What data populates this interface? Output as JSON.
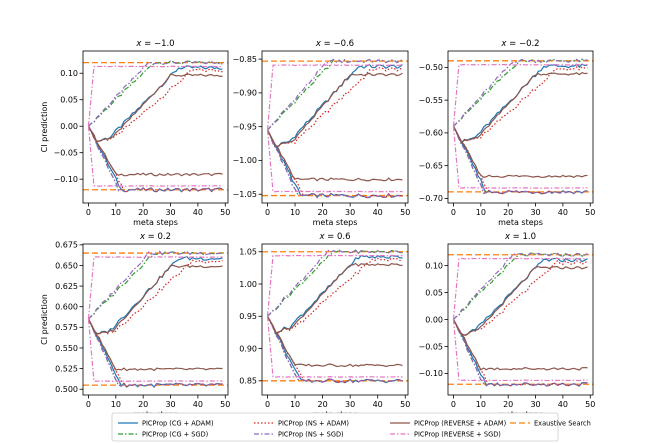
{
  "figure": {
    "ylabel": "CI prediction",
    "xlabel": "meta steps"
  },
  "chart_data": [
    {
      "type": "line",
      "title": "x = −1.0",
      "title_var": "x",
      "title_value": "−1.0",
      "xlabel": "meta steps",
      "ylabel": "CI prediction",
      "xlim": [
        -2,
        51
      ],
      "ylim": [
        -0.145,
        0.142
      ],
      "xticks": [
        "0",
        "10",
        "20",
        "30",
        "40",
        "50"
      ],
      "yticks": [
        0.1,
        0.05,
        0.0,
        -0.05,
        -0.1
      ],
      "ytick_labels": [
        "0.10",
        "0.05",
        "0.00",
        "−0.05",
        "−0.10"
      ],
      "start": 0.0,
      "upper": 0.12,
      "lower": -0.12,
      "grid": false
    },
    {
      "type": "line",
      "title": "x = −0.6",
      "title_var": "x",
      "title_value": "−0.6",
      "xlabel": "meta steps",
      "ylabel": "",
      "xlim": [
        -2,
        51
      ],
      "ylim": [
        -1.063,
        -0.838
      ],
      "xticks": [
        "0",
        "10",
        "20",
        "30",
        "40",
        "50"
      ],
      "yticks": [
        -0.85,
        -0.9,
        -0.95,
        -1.0,
        -1.05
      ],
      "ytick_labels": [
        "−0.85",
        "−0.90",
        "−0.95",
        "−1.00",
        "−1.05"
      ],
      "start": -0.955,
      "upper": -0.853,
      "lower": -1.052,
      "grid": false
    },
    {
      "type": "line",
      "title": "x = −0.2",
      "title_var": "x",
      "title_value": "−0.2",
      "xlabel": "meta steps",
      "ylabel": "",
      "xlim": [
        -2,
        51
      ],
      "ylim": [
        -0.707,
        -0.475
      ],
      "xticks": [
        "0",
        "10",
        "20",
        "30",
        "40",
        "50"
      ],
      "yticks": [
        -0.5,
        -0.55,
        -0.6,
        -0.65,
        -0.7
      ],
      "ytick_labels": [
        "−0.50",
        "−0.55",
        "−0.60",
        "−0.65",
        "−0.70"
      ],
      "start": -0.59,
      "upper": -0.49,
      "lower": -0.69,
      "grid": false
    },
    {
      "type": "line",
      "title": "x = 0.2",
      "title_var": "x",
      "title_value": "0.2",
      "xlabel": "meta steps",
      "ylabel": "CI prediction",
      "xlim": [
        -2,
        51
      ],
      "ylim": [
        0.493,
        0.676
      ],
      "xticks": [
        "0",
        "10",
        "20",
        "30",
        "40",
        "50"
      ],
      "yticks": [
        0.675,
        0.65,
        0.625,
        0.6,
        0.575,
        0.55,
        0.525,
        0.5
      ],
      "ytick_labels": [
        "0.675",
        "0.650",
        "0.625",
        "0.600",
        "0.575",
        "0.550",
        "0.525",
        "0.500"
      ],
      "start": 0.585,
      "upper": 0.665,
      "lower": 0.505,
      "grid": false
    },
    {
      "type": "line",
      "title": "x = 0.6",
      "title_var": "x",
      "title_value": "0.6",
      "xlabel": "meta steps",
      "ylabel": "",
      "xlim": [
        -2,
        51
      ],
      "ylim": [
        0.828,
        1.062
      ],
      "xticks": [
        "0",
        "10",
        "20",
        "30",
        "40",
        "50"
      ],
      "yticks": [
        1.05,
        1.0,
        0.95,
        0.9,
        0.85
      ],
      "ytick_labels": [
        "1.05",
        "1.00",
        "0.95",
        "0.90",
        "0.85"
      ],
      "start": 0.95,
      "upper": 1.05,
      "lower": 0.85,
      "grid": false
    },
    {
      "type": "line",
      "title": "x = 1.0",
      "title_var": "x",
      "title_value": "1.0",
      "xlabel": "meta steps",
      "ylabel": "",
      "xlim": [
        -2,
        51
      ],
      "ylim": [
        -0.14,
        0.14
      ],
      "xticks": [
        "0",
        "10",
        "20",
        "30",
        "40",
        "50"
      ],
      "yticks": [
        0.1,
        0.05,
        0.0,
        -0.05,
        -0.1
      ],
      "ytick_labels": [
        "0.10",
        "0.05",
        "0.00",
        "−0.05",
        "−0.10"
      ],
      "start": 0.0,
      "upper": 0.12,
      "lower": -0.12,
      "grid": false
    }
  ],
  "legend": [
    {
      "label": "PICProp (CG + ADAM)",
      "color": "#1f77b4",
      "dash": "solid"
    },
    {
      "label": "PICProp (CG + SGD)",
      "color": "#2ca02c",
      "dash": "dashdot"
    },
    {
      "label": "PICProp (NS + ADAM)",
      "color": "#d62728",
      "dash": "dotted"
    },
    {
      "label": "PICProp (NS + SGD)",
      "color": "#9467bd",
      "dash": "dashdot"
    },
    {
      "label": "PICProp (REVERSE + ADAM)",
      "color": "#8c564b",
      "dash": "solid"
    },
    {
      "label": "PICProp (REVERSE + SGD)",
      "color": "#e377c2",
      "dash": "dashdot"
    },
    {
      "label": "Exaustive Search",
      "color": "#ff7f0e",
      "dash": "dashed"
    }
  ]
}
